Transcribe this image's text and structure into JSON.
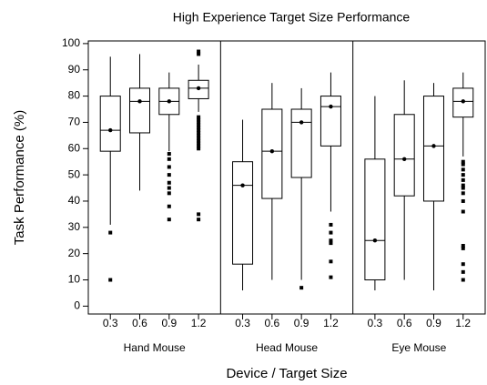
{
  "chart_data": {
    "type": "box",
    "title": "High Experience Target Size Performance",
    "x_label": "Device / Target Size",
    "y_label": "Task Performance (%)",
    "categories": [
      "0.3",
      "0.6",
      "0.9",
      "1.2"
    ],
    "ylim": [
      -3,
      101
    ],
    "yticks": [
      0,
      10,
      20,
      30,
      40,
      50,
      60,
      70,
      80,
      90,
      100
    ],
    "series": [
      {
        "name": "Hand Mouse",
        "boxes": [
          {
            "min": 31,
            "q1": 59,
            "median": 67,
            "q3": 80,
            "max": 95,
            "outliers": [
              28,
              10
            ]
          },
          {
            "min": 44,
            "q1": 66,
            "median": 78,
            "q3": 83,
            "max": 96,
            "outliers": []
          },
          {
            "min": 59,
            "q1": 73,
            "median": 78,
            "q3": 83,
            "max": 89,
            "outliers": [
              58,
              56,
              53,
              50,
              47,
              45,
              43,
              38,
              33
            ]
          },
          {
            "min": 74,
            "q1": 79,
            "median": 83,
            "q3": 86,
            "max": 92,
            "outliers": [
              97,
              96,
              72,
              71,
              70,
              69,
              68,
              67,
              66,
              65,
              64,
              63,
              62,
              61,
              60,
              35,
              33
            ]
          }
        ]
      },
      {
        "name": "Head Mouse",
        "boxes": [
          {
            "min": 6,
            "q1": 16,
            "median": 46,
            "q3": 55,
            "max": 71,
            "outliers": []
          },
          {
            "min": 10,
            "q1": 41,
            "median": 59,
            "q3": 75,
            "max": 85,
            "outliers": []
          },
          {
            "min": 10,
            "q1": 49,
            "median": 70,
            "q3": 75,
            "max": 83,
            "outliers": [
              7
            ]
          },
          {
            "min": 36,
            "q1": 61,
            "median": 76,
            "q3": 80,
            "max": 89,
            "outliers": [
              31,
              28,
              25,
              24,
              17,
              11
            ]
          }
        ]
      },
      {
        "name": "Eye Mouse",
        "boxes": [
          {
            "min": 6,
            "q1": 10,
            "median": 25,
            "q3": 56,
            "max": 80,
            "outliers": []
          },
          {
            "min": 10,
            "q1": 42,
            "median": 56,
            "q3": 73,
            "max": 86,
            "outliers": []
          },
          {
            "min": 6,
            "q1": 40,
            "median": 61,
            "q3": 80,
            "max": 85,
            "outliers": []
          },
          {
            "min": 57,
            "q1": 72,
            "median": 78,
            "q3": 83,
            "max": 89,
            "outliers": [
              55,
              54,
              52,
              50,
              48,
              46,
              45,
              43,
              40,
              36,
              23,
              22,
              16,
              13,
              10
            ]
          }
        ]
      }
    ]
  }
}
